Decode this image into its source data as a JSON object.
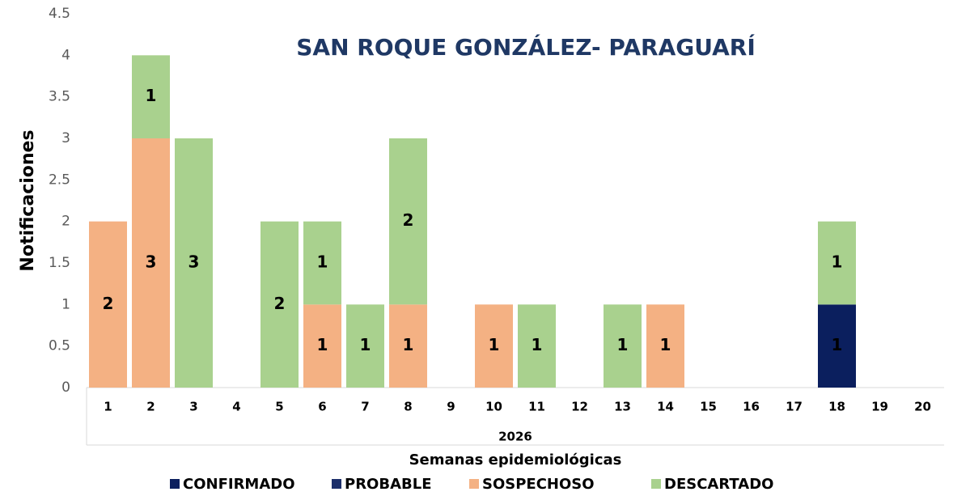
{
  "chart_data": {
    "type": "bar",
    "stacked": true,
    "title": "SAN ROQUE GONZÁLEZ- PARAGUARÍ",
    "y_label": "Notificaciones",
    "x_label": "Semanas epidemiológicas",
    "group_label": "2026",
    "categories": [
      "1",
      "2",
      "3",
      "4",
      "5",
      "6",
      "7",
      "8",
      "9",
      "10",
      "11",
      "12",
      "13",
      "14",
      "15",
      "16",
      "17",
      "18",
      "19",
      "20"
    ],
    "series": [
      {
        "name": "CONFIRMADO",
        "color": "#0b1f5e",
        "values": [
          0,
          0,
          0,
          0,
          0,
          0,
          0,
          0,
          0,
          0,
          0,
          0,
          0,
          0,
          0,
          0,
          0,
          1,
          0,
          0
        ]
      },
      {
        "name": "PROBABLE",
        "color": "#1c2f6b",
        "values": [
          0,
          0,
          0,
          0,
          0,
          0,
          0,
          0,
          0,
          0,
          0,
          0,
          0,
          0,
          0,
          0,
          0,
          0,
          0,
          0
        ]
      },
      {
        "name": "SOSPECHOSO",
        "color": "#f4b183",
        "values": [
          2,
          3,
          0,
          0,
          0,
          1,
          0,
          1,
          0,
          1,
          0,
          0,
          0,
          1,
          0,
          0,
          0,
          0,
          0,
          0
        ]
      },
      {
        "name": "DESCARTADO",
        "color": "#a9d18e",
        "values": [
          0,
          1,
          3,
          0,
          2,
          1,
          1,
          2,
          0,
          0,
          1,
          0,
          1,
          0,
          0,
          0,
          0,
          1,
          0,
          0
        ]
      }
    ],
    "ylim": [
      0,
      4.5
    ],
    "yticks": [
      0,
      0.5,
      1,
      1.5,
      2,
      2.5,
      3,
      3.5,
      4,
      4.5
    ],
    "legend": "bottom"
  }
}
